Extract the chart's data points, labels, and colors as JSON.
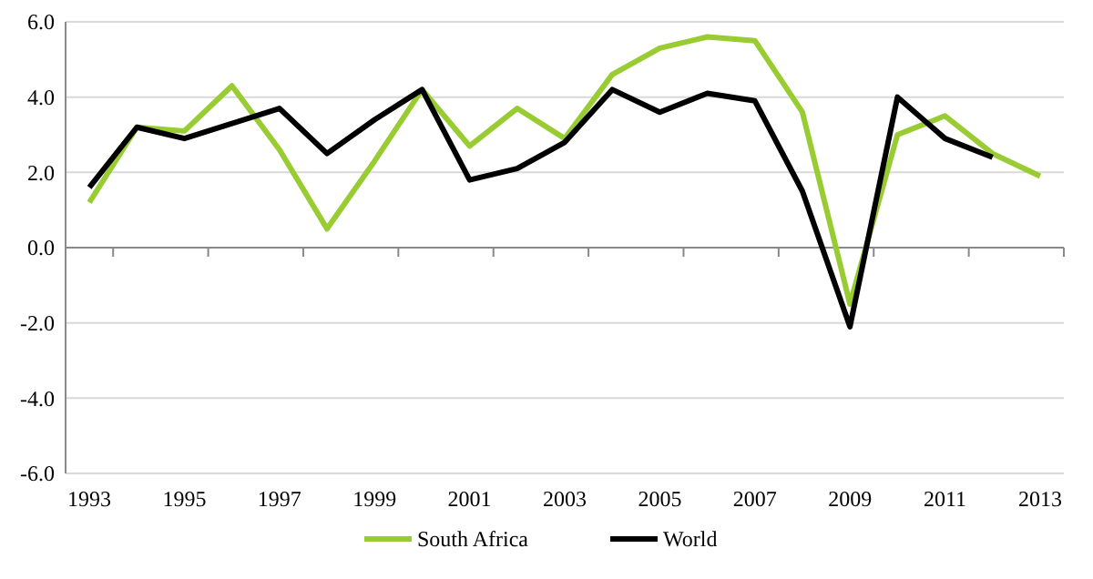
{
  "chart_data": {
    "type": "line",
    "categories": [
      "1993",
      null,
      "1995",
      null,
      "1997",
      null,
      "1999",
      null,
      "2001",
      null,
      "2003",
      null,
      "2005",
      null,
      "2007",
      null,
      "2009",
      null,
      "2011",
      null,
      "2013"
    ],
    "series": [
      {
        "name": "South Africa",
        "color": "#99cc33",
        "values": [
          1.2,
          3.2,
          3.1,
          4.3,
          2.6,
          0.5,
          2.3,
          4.2,
          2.7,
          3.7,
          2.9,
          4.6,
          5.3,
          5.6,
          5.5,
          3.6,
          -1.5,
          3.0,
          3.5,
          2.5,
          1.9
        ]
      },
      {
        "name": "World",
        "color": "#000000",
        "values": [
          1.6,
          3.2,
          2.9,
          3.3,
          3.7,
          2.5,
          3.4,
          4.2,
          1.8,
          2.1,
          2.8,
          4.2,
          3.6,
          4.1,
          3.9,
          1.5,
          -2.1,
          4.0,
          2.9,
          2.4,
          null
        ]
      }
    ],
    "ylim": [
      -6,
      6
    ],
    "yticks": [
      {
        "value": -6,
        "label": "-6.0"
      },
      {
        "value": -4,
        "label": "-4.0"
      },
      {
        "value": -2,
        "label": "-2.0"
      },
      {
        "value": 0,
        "label": "0.0"
      },
      {
        "value": 2,
        "label": "2.0"
      },
      {
        "value": 4,
        "label": "4.0"
      },
      {
        "value": 6,
        "label": "6.0"
      }
    ],
    "grid": "y",
    "legend": "bottom",
    "marker": "none",
    "line_style": "solid"
  }
}
